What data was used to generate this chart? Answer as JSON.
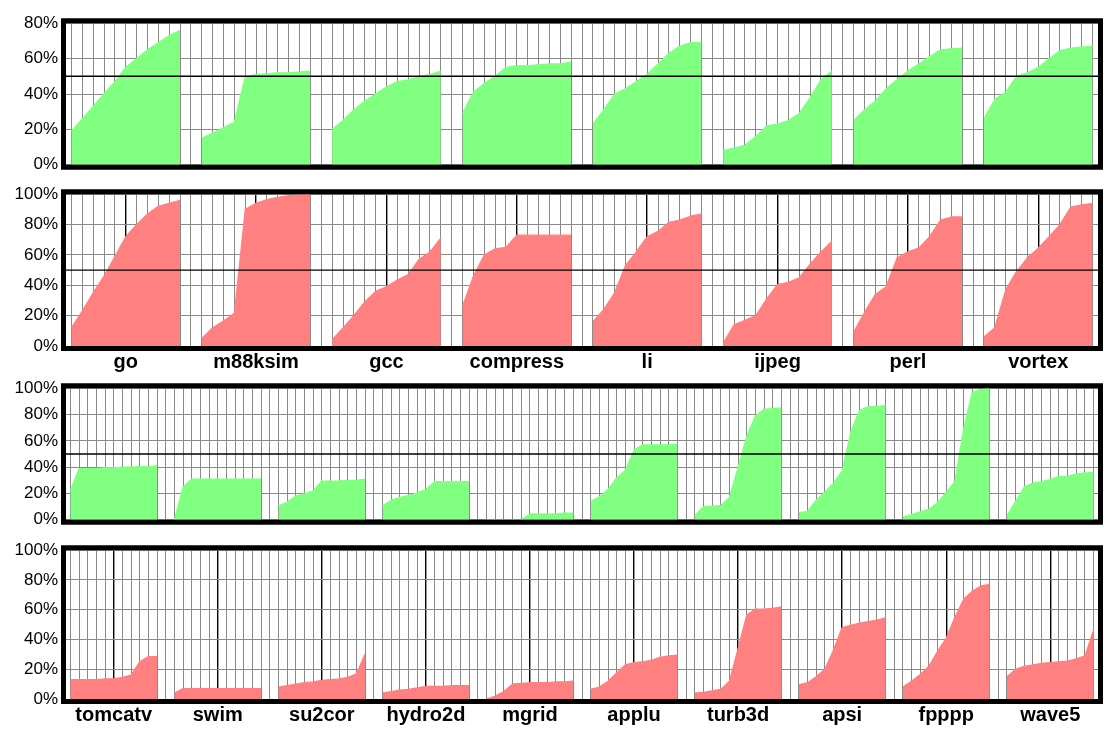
{
  "chart_data": [
    {
      "type": "area",
      "ylim": [
        0,
        80
      ],
      "yticks": [
        {
          "value": 0,
          "label": "0%"
        },
        {
          "value": 20,
          "label": "20%"
        },
        {
          "value": 40,
          "label": "40%"
        },
        {
          "value": 60,
          "label": "60%"
        },
        {
          "value": 80,
          "label": "80%"
        }
      ],
      "categories": [
        null,
        null,
        null,
        null,
        null,
        null,
        null,
        null,
        null,
        null,
        null,
        null,
        null,
        null,
        null,
        null,
        null,
        null,
        null,
        null,
        null,
        null,
        null,
        null,
        null,
        null,
        null,
        null,
        null,
        null,
        null,
        null,
        null,
        null,
        null,
        null,
        null,
        null,
        null,
        null,
        null,
        null,
        null,
        null,
        null,
        null,
        null,
        null,
        null,
        null,
        null,
        null,
        null,
        null,
        null,
        null,
        null,
        null,
        null,
        null,
        null,
        null,
        null,
        null,
        null,
        null,
        null,
        null,
        null,
        null,
        null,
        null,
        null,
        null,
        null,
        null,
        null,
        null,
        null,
        null,
        null,
        null,
        null,
        null,
        null,
        null,
        null,
        null,
        null,
        null,
        null,
        null,
        null,
        null,
        null
      ],
      "grid": true,
      "tick_labels": "y",
      "ref_lines": [
        {
          "axis": "y",
          "value": 50,
          "color": "#000000"
        }
      ],
      "series": [
        {
          "color": "#80ff80",
          "values": [
            19,
            26,
            33,
            40,
            47,
            55,
            60,
            65,
            69,
            73,
            76,
            null,
            15,
            18,
            21,
            24,
            50,
            51,
            51.5,
            52,
            52,
            52.5,
            53,
            null,
            20,
            25,
            31,
            36,
            40,
            44,
            47,
            48,
            50,
            51,
            53,
            null,
            29,
            41,
            46,
            50,
            55,
            56,
            56,
            56.5,
            57,
            57,
            58,
            null,
            23,
            31,
            40,
            43,
            47,
            51,
            57,
            63,
            67,
            69,
            69,
            null,
            8,
            9.5,
            11,
            16,
            22,
            23,
            25,
            29,
            38,
            48,
            53,
            null,
            25,
            31,
            36,
            43,
            48,
            53,
            57,
            61,
            65,
            65.5,
            66,
            null,
            26,
            37,
            41,
            50,
            52,
            55,
            60,
            64.5,
            66,
            66.5,
            67
          ]
        }
      ]
    },
    {
      "type": "area",
      "ylim": [
        0,
        100
      ],
      "yticks": [
        {
          "value": 0,
          "label": "0%"
        },
        {
          "value": 20,
          "label": "20%"
        },
        {
          "value": 40,
          "label": "40%"
        },
        {
          "value": 60,
          "label": "60%"
        },
        {
          "value": 80,
          "label": "80%"
        },
        {
          "value": 100,
          "label": "100%"
        }
      ],
      "categories": [
        null,
        null,
        null,
        null,
        null,
        "go",
        null,
        null,
        null,
        null,
        null,
        null,
        null,
        null,
        null,
        null,
        null,
        "m88ksim",
        null,
        null,
        null,
        null,
        null,
        null,
        null,
        null,
        null,
        null,
        null,
        "gcc",
        null,
        null,
        null,
        null,
        null,
        null,
        null,
        null,
        null,
        null,
        null,
        "compress",
        null,
        null,
        null,
        null,
        null,
        null,
        null,
        null,
        null,
        null,
        null,
        "li",
        null,
        null,
        null,
        null,
        null,
        null,
        null,
        null,
        null,
        null,
        null,
        "ijpeg",
        null,
        null,
        null,
        null,
        null,
        null,
        null,
        null,
        null,
        null,
        null,
        "perl",
        null,
        null,
        null,
        null,
        null,
        null,
        null,
        null,
        null,
        null,
        null,
        "vortex",
        null,
        null,
        null,
        null,
        null
      ],
      "grid": true,
      "ref_lines": [
        {
          "axis": "y",
          "value": 50,
          "color": "#000000"
        }
      ],
      "series": [
        {
          "color": "#ff8080",
          "values": [
            12,
            23,
            35,
            46,
            59,
            72,
            80,
            87,
            92,
            94,
            96,
            null,
            5,
            12,
            16.5,
            21.5,
            90,
            94,
            96.5,
            98,
            99,
            99.5,
            100,
            null,
            4,
            12,
            20,
            29,
            36,
            39,
            43.5,
            47,
            57,
            62,
            71,
            null,
            26,
            46,
            60,
            64,
            65,
            73,
            73,
            73,
            73,
            73,
            73,
            null,
            16,
            24,
            35,
            53,
            62,
            72,
            75.5,
            81.5,
            83,
            85.5,
            87,
            null,
            2,
            14,
            17,
            20,
            31,
            40.5,
            42,
            45,
            54,
            62,
            69,
            null,
            9,
            22,
            34,
            39,
            58,
            62,
            64.5,
            72,
            83,
            85,
            85,
            null,
            6,
            12,
            37,
            49,
            58,
            64.5,
            72,
            80,
            91.5,
            93,
            94
          ]
        }
      ]
    },
    {
      "type": "area",
      "ylim": [
        0,
        100
      ],
      "yticks": [
        {
          "value": 0,
          "label": "0%"
        },
        {
          "value": 20,
          "label": "20%"
        },
        {
          "value": 40,
          "label": "40%"
        },
        {
          "value": 60,
          "label": "60%"
        },
        {
          "value": 80,
          "label": "80%"
        },
        {
          "value": 100,
          "label": "100%"
        }
      ],
      "categories": [
        null,
        null,
        null,
        null,
        null,
        null,
        null,
        null,
        null,
        null,
        null,
        null,
        null,
        null,
        null,
        null,
        null,
        null,
        null,
        null,
        null,
        null,
        null,
        null,
        null,
        null,
        null,
        null,
        null,
        null,
        null,
        null,
        null,
        null,
        null,
        null,
        null,
        null,
        null,
        null,
        null,
        null,
        null,
        null,
        null,
        null,
        null,
        null,
        null,
        null,
        null,
        null,
        null,
        null,
        null,
        null,
        null,
        null,
        null,
        null,
        null,
        null,
        null,
        null,
        null,
        null,
        null,
        null,
        null,
        null,
        null,
        null,
        null,
        null,
        null,
        null,
        null,
        null,
        null,
        null,
        null,
        null,
        null,
        null,
        null,
        null,
        null,
        null,
        null,
        null,
        null,
        null,
        null,
        null,
        null,
        null,
        null,
        null,
        null,
        null,
        null,
        null,
        null,
        null,
        null,
        null,
        null,
        null,
        null,
        null,
        null,
        null,
        null,
        null,
        null,
        null,
        null,
        null,
        null
      ],
      "grid": true,
      "tick_labels": "y",
      "ref_lines": [
        {
          "axis": "y",
          "value": 50,
          "color": "#000000"
        }
      ],
      "series": [
        {
          "color": "#80ff80",
          "values": [
            22,
            39,
            39,
            39,
            39.5,
            39.5,
            40,
            40,
            40.5,
            40.5,
            41,
            null,
            0,
            25,
            31,
            31,
            31,
            31,
            31,
            31,
            31,
            31,
            31,
            null,
            10.5,
            13.5,
            18,
            20,
            22,
            29.5,
            29.5,
            29.5,
            30,
            30,
            31,
            null,
            10.5,
            15,
            17,
            18.5,
            20.5,
            23,
            29,
            29,
            29,
            29,
            29,
            null,
            0,
            0,
            0,
            0,
            0,
            4.5,
            4.5,
            4.5,
            4.5,
            5,
            5,
            null,
            14,
            17.5,
            23,
            32,
            37.5,
            53,
            57,
            57,
            57,
            57,
            57.5,
            null,
            3,
            10,
            10.5,
            11,
            17,
            40,
            63.5,
            79,
            84,
            84.5,
            85,
            null,
            5.5,
            6.5,
            15,
            21,
            28,
            37,
            67,
            83,
            86,
            86,
            87,
            null,
            2,
            4,
            6,
            8,
            13,
            21,
            29,
            69,
            97,
            99,
            100,
            null,
            3,
            14,
            25,
            28,
            29,
            30.5,
            33,
            33,
            35,
            35.5,
            36
          ]
        }
      ]
    },
    {
      "type": "area",
      "ylim": [
        0,
        100
      ],
      "yticks": [
        {
          "value": 0,
          "label": "0%"
        },
        {
          "value": 20,
          "label": "20%"
        },
        {
          "value": 40,
          "label": "40%"
        },
        {
          "value": 60,
          "label": "60%"
        },
        {
          "value": 80,
          "label": "80%"
        },
        {
          "value": 100,
          "label": "100%"
        }
      ],
      "categories": [
        null,
        null,
        null,
        null,
        null,
        "tomcatv",
        null,
        null,
        null,
        null,
        null,
        null,
        null,
        null,
        null,
        null,
        null,
        "swim",
        null,
        null,
        null,
        null,
        null,
        null,
        null,
        null,
        null,
        null,
        null,
        "su2cor",
        null,
        null,
        null,
        null,
        null,
        null,
        null,
        null,
        null,
        null,
        null,
        "hydro2d",
        null,
        null,
        null,
        null,
        null,
        null,
        null,
        null,
        null,
        null,
        null,
        "mgrid",
        null,
        null,
        null,
        null,
        null,
        null,
        null,
        null,
        null,
        null,
        null,
        "applu",
        null,
        null,
        null,
        null,
        null,
        null,
        null,
        null,
        null,
        null,
        null,
        "turb3d",
        null,
        null,
        null,
        null,
        null,
        null,
        null,
        null,
        null,
        null,
        null,
        "apsi",
        null,
        null,
        null,
        null,
        null,
        null,
        null,
        null,
        null,
        null,
        null,
        "fpppp",
        null,
        null,
        null,
        null,
        null,
        null,
        null,
        null,
        null,
        null,
        null,
        "wave5",
        null,
        null,
        null,
        null,
        null
      ],
      "grid": true,
      "series": [
        {
          "color": "#ff8080",
          "values": [
            13,
            13,
            13,
            13,
            13.5,
            13.5,
            14.5,
            16,
            25,
            28.5,
            28.5,
            null,
            4,
            7,
            7,
            7,
            7,
            7,
            7,
            7,
            7,
            7,
            7,
            null,
            8,
            9,
            10,
            11,
            11.5,
            12.5,
            13,
            13.5,
            14.5,
            17,
            30.5,
            null,
            4,
            5,
            6,
            6.5,
            7.5,
            8.5,
            8.5,
            8.5,
            9,
            9,
            9,
            null,
            0,
            2,
            5,
            10,
            10.5,
            11,
            11,
            11,
            11.5,
            11.5,
            12,
            null,
            6.5,
            8,
            12,
            17.5,
            23,
            24.5,
            25,
            26,
            28,
            29,
            29.5,
            null,
            4,
            4.5,
            5.5,
            6.5,
            12,
            34,
            56.5,
            60.5,
            60.5,
            61,
            62,
            null,
            9.5,
            11,
            15,
            20,
            33,
            48,
            49.5,
            51,
            52,
            53,
            54.5,
            null,
            8,
            12,
            16.5,
            22,
            32,
            41,
            55,
            67,
            72.5,
            76,
            77,
            null,
            15,
            20,
            22,
            23,
            24,
            24.5,
            25,
            25.5,
            27,
            29,
            46.5
          ]
        }
      ]
    }
  ]
}
